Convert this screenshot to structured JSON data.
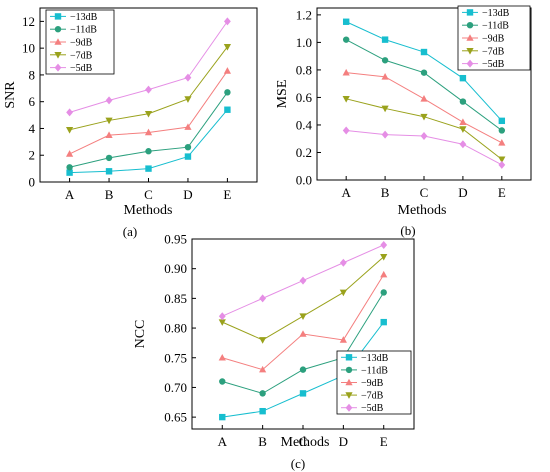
{
  "chart_data": [
    {
      "type": "line",
      "caption": "(a)",
      "categories": [
        "A",
        "B",
        "C",
        "D",
        "E"
      ],
      "xlabel": "Methods",
      "ylabel": "SNR",
      "ylim": [
        0,
        13
      ],
      "yticks": [
        0,
        2,
        4,
        6,
        8,
        10,
        12
      ],
      "legend_position": "top-left",
      "series": [
        {
          "name": "−13dB",
          "color": "#17becf",
          "marker": "square",
          "values": [
            0.7,
            0.8,
            1.0,
            1.9,
            5.4
          ]
        },
        {
          "name": "−11dB",
          "color": "#2ca07e",
          "marker": "circle",
          "values": [
            1.1,
            1.8,
            2.3,
            2.6,
            6.7
          ]
        },
        {
          "name": "−9dB",
          "color": "#f47f7f",
          "marker": "triangle-up",
          "values": [
            2.1,
            3.5,
            3.7,
            4.1,
            8.3
          ]
        },
        {
          "name": "−7dB",
          "color": "#9aa21c",
          "marker": "triangle-down",
          "values": [
            3.9,
            4.6,
            5.1,
            6.2,
            10.1
          ]
        },
        {
          "name": "−5dB",
          "color": "#e58ee5",
          "marker": "diamond",
          "values": [
            5.2,
            6.1,
            6.9,
            7.8,
            12.0
          ]
        }
      ]
    },
    {
      "type": "line",
      "caption": "(b)",
      "categories": [
        "A",
        "B",
        "C",
        "D",
        "E"
      ],
      "xlabel": "Methods",
      "ylabel": "MSE",
      "ylim": [
        0,
        1.25
      ],
      "yticks": [
        0.0,
        0.2,
        0.4,
        0.6,
        0.8,
        1.0,
        1.2
      ],
      "legend_position": "top-right",
      "series": [
        {
          "name": "−13dB",
          "color": "#17becf",
          "marker": "square",
          "values": [
            1.15,
            1.02,
            0.93,
            0.74,
            0.43
          ]
        },
        {
          "name": "−11dB",
          "color": "#2ca07e",
          "marker": "circle",
          "values": [
            1.02,
            0.87,
            0.78,
            0.57,
            0.36
          ]
        },
        {
          "name": "−9dB",
          "color": "#f47f7f",
          "marker": "triangle-up",
          "values": [
            0.78,
            0.75,
            0.59,
            0.42,
            0.27
          ]
        },
        {
          "name": "−7dB",
          "color": "#9aa21c",
          "marker": "triangle-down",
          "values": [
            0.59,
            0.52,
            0.46,
            0.37,
            0.15
          ]
        },
        {
          "name": "−5dB",
          "color": "#e58ee5",
          "marker": "diamond",
          "values": [
            0.36,
            0.33,
            0.32,
            0.26,
            0.11
          ]
        }
      ]
    },
    {
      "type": "line",
      "caption": "(c)",
      "categories": [
        "A",
        "B",
        "C",
        "D",
        "E"
      ],
      "xlabel": "Methods",
      "ylabel": "NCC",
      "ylim": [
        0.63,
        0.95
      ],
      "yticks": [
        0.65,
        0.7,
        0.75,
        0.8,
        0.85,
        0.9,
        0.95
      ],
      "legend_position": "bottom-right",
      "series": [
        {
          "name": "−13dB",
          "color": "#17becf",
          "marker": "square",
          "values": [
            0.65,
            0.66,
            0.69,
            0.72,
            0.81
          ]
        },
        {
          "name": "−11dB",
          "color": "#2ca07e",
          "marker": "circle",
          "values": [
            0.71,
            0.69,
            0.73,
            0.75,
            0.86
          ]
        },
        {
          "name": "−9dB",
          "color": "#f47f7f",
          "marker": "triangle-up",
          "values": [
            0.75,
            0.73,
            0.79,
            0.78,
            0.89
          ]
        },
        {
          "name": "−7dB",
          "color": "#9aa21c",
          "marker": "triangle-down",
          "values": [
            0.81,
            0.78,
            0.82,
            0.86,
            0.92
          ]
        },
        {
          "name": "−5dB",
          "color": "#e58ee5",
          "marker": "diamond",
          "values": [
            0.82,
            0.85,
            0.88,
            0.91,
            0.94
          ]
        }
      ]
    }
  ]
}
